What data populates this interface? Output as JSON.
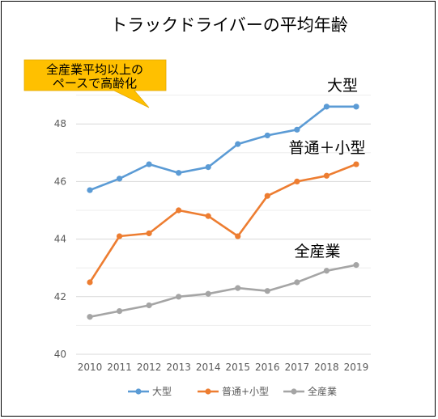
{
  "chart_data": {
    "type": "line",
    "title": "トラックドライバーの平均年齢",
    "categories": [
      "2010",
      "2011",
      "2012",
      "2013",
      "2014",
      "2015",
      "2016",
      "2017",
      "2018",
      "2019"
    ],
    "ylim": [
      40,
      49
    ],
    "yticks": [
      40,
      42,
      44,
      46,
      48
    ],
    "grid": true,
    "legend_position": "bottom",
    "series": [
      {
        "name": "大型",
        "color": "#5B9BD5",
        "values": [
          45.7,
          46.1,
          46.6,
          46.3,
          46.5,
          47.3,
          47.6,
          47.8,
          48.6,
          48.6
        ]
      },
      {
        "name": "普通+小型",
        "color": "#ED7D31",
        "values": [
          42.5,
          44.1,
          44.2,
          45.0,
          44.8,
          44.1,
          45.5,
          46.0,
          46.2,
          46.6
        ]
      },
      {
        "name": "全産業",
        "color": "#A5A5A5",
        "values": [
          41.3,
          41.5,
          41.7,
          42.0,
          42.1,
          42.3,
          42.2,
          42.5,
          42.9,
          43.1
        ]
      }
    ],
    "annotations": {
      "series_labels": [
        "大型",
        "普通＋小型",
        "全産業"
      ],
      "callout_lines": [
        "全産業平均以上の",
        "ペースで高齢化"
      ]
    },
    "callout_color": "#FFC000"
  }
}
